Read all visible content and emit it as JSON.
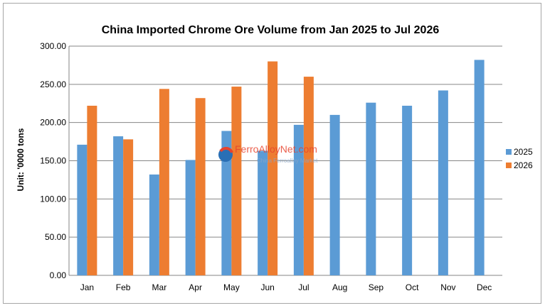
{
  "chart_data": {
    "type": "bar",
    "title": "China Imported Chrome Ore Volume from Jan 2025 to Jul 2026",
    "xlabel": "",
    "ylabel": "Unit: '0000 tons",
    "ylim": [
      0,
      300
    ],
    "yticks": [
      "0.00",
      "50.00",
      "100.00",
      "150.00",
      "200.00",
      "250.00",
      "300.00"
    ],
    "categories": [
      "Jan",
      "Feb",
      "Mar",
      "Apr",
      "May",
      "Jun",
      "Jul",
      "Aug",
      "Sep",
      "Oct",
      "Nov",
      "Dec"
    ],
    "series": [
      {
        "name": "2025",
        "color": "#5b9bd5",
        "values": [
          171,
          182,
          132,
          151,
          189,
          163,
          197,
          210,
          226,
          222,
          242,
          282
        ]
      },
      {
        "name": "2026",
        "color": "#ed7d31",
        "values": [
          222,
          178,
          244,
          232,
          247,
          280,
          260,
          null,
          null,
          null,
          null,
          null
        ]
      }
    ],
    "grid": true,
    "legend_position": "right"
  },
  "watermark": {
    "brand": "FerroAlloyNet.com",
    "tagline": "China Ferroalloy Market"
  }
}
